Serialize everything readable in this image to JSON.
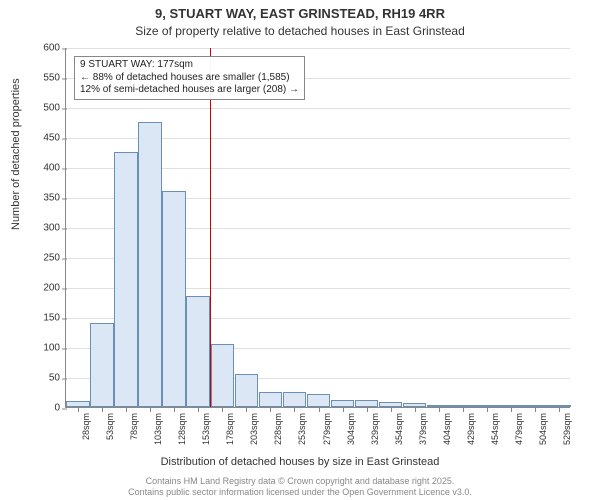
{
  "title": {
    "main": "9, STUART WAY, EAST GRINSTEAD, RH19 4RR",
    "sub": "Size of property relative to detached houses in East Grinstead"
  },
  "chart": {
    "type": "histogram",
    "background_color": "#ffffff",
    "grid_color": "#e0e0e0",
    "axis_color": "#888888",
    "bar_fill": "#dbe7f5",
    "bar_border": "#6b8fb5",
    "reference_line_color": "#cc0000",
    "ylabel": "Number of detached properties",
    "xlabel": "Distribution of detached houses by size in East Grinstead",
    "ylim": [
      0,
      600
    ],
    "ytick_step": 50,
    "x_categories": [
      "28sqm",
      "53sqm",
      "78sqm",
      "103sqm",
      "128sqm",
      "153sqm",
      "178sqm",
      "203sqm",
      "228sqm",
      "253sqm",
      "279sqm",
      "304sqm",
      "329sqm",
      "354sqm",
      "379sqm",
      "404sqm",
      "429sqm",
      "454sqm",
      "479sqm",
      "504sqm",
      "529sqm"
    ],
    "values": [
      10,
      140,
      425,
      475,
      360,
      185,
      105,
      55,
      25,
      25,
      22,
      12,
      12,
      8,
      6,
      4,
      3,
      2,
      2,
      2,
      1
    ],
    "reference_index": 6,
    "annotation": {
      "line1": "9 STUART WAY: 177sqm",
      "line2": "← 88% of detached houses are smaller (1,585)",
      "line3": "12% of semi-detached houses are larger (208) →"
    },
    "label_fontsize": 11,
    "tick_fontsize": 10
  },
  "footer": {
    "line1": "Contains HM Land Registry data © Crown copyright and database right 2025.",
    "line2": "Contains public sector information licensed under the Open Government Licence v3.0."
  }
}
